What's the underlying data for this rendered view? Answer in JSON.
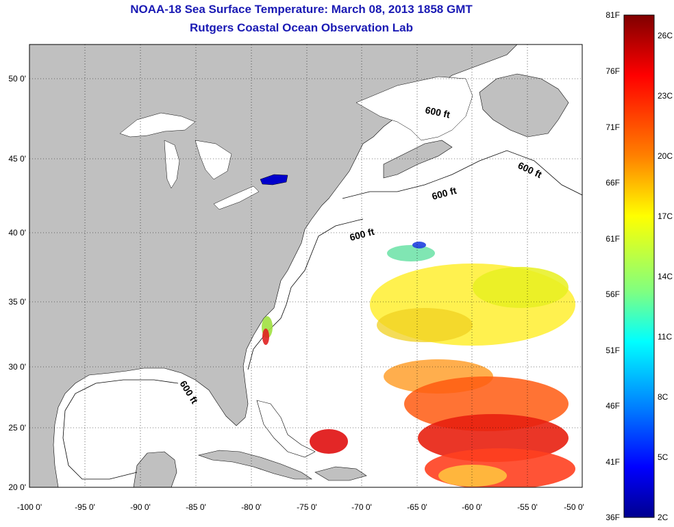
{
  "title": {
    "line1": "NOAA-18 Sea Surface Temperature:  March 08, 2013 1858 GMT",
    "line2": "Rutgers Coastal Ocean Observation Lab"
  },
  "map": {
    "lon_range": [
      -100,
      -50
    ],
    "lat_range": [
      20,
      52.5
    ],
    "lon_ticks": [
      "-100 0'",
      "-95 0'",
      "-90 0'",
      "-85 0'",
      "-80 0'",
      "-75 0'",
      "-70 0'",
      "-65 0'",
      "-60 0'",
      "-55 0'",
      "-50 0'"
    ],
    "lat_ticks": [
      "20 0'",
      "25 0'",
      "30 0'",
      "35 0'",
      "40 0'",
      "45 0'",
      "50 0'"
    ],
    "land_color": "#c0c0c0",
    "water_color": "#ffffff",
    "grid": "dotted",
    "isobath_labels": [
      "600 ft",
      "600 ft",
      "600 ft",
      "600 ft",
      "600 ft"
    ]
  },
  "colorbar": {
    "fahrenheit_labels": [
      "81F",
      "76F",
      "71F",
      "66F",
      "61F",
      "56F",
      "51F",
      "46F",
      "41F",
      "36F"
    ],
    "celsius_labels": [
      "26C",
      "23C",
      "20C",
      "17C",
      "14C",
      "11C",
      "8C",
      "5C",
      "2C"
    ],
    "range_f": [
      36,
      81
    ],
    "colors": [
      "#7f0000",
      "#ff0000",
      "#ff8000",
      "#ffff00",
      "#80ff80",
      "#00ffff",
      "#0080ff",
      "#0000ff",
      "#00008f"
    ]
  }
}
